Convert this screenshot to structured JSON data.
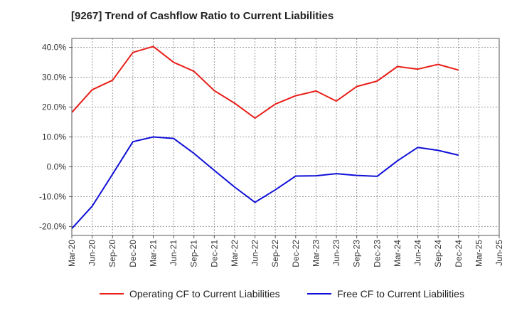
{
  "chart_data": {
    "type": "line",
    "title": "[9267]  Trend of Cashflow Ratio to Current Liabilities",
    "xlabel": "",
    "ylabel": "",
    "x": [
      "Mar-20",
      "Jun-20",
      "Sep-20",
      "Dec-20",
      "Mar-21",
      "Jun-21",
      "Sep-21",
      "Dec-21",
      "Mar-22",
      "Jun-22",
      "Sep-22",
      "Dec-22",
      "Mar-23",
      "Jun-23",
      "Sep-23",
      "Dec-23",
      "Mar-24",
      "Jun-24",
      "Sep-24",
      "Dec-24",
      "Mar-25",
      "Jun-25"
    ],
    "ylim": [
      -23,
      43
    ],
    "yticks": [
      40,
      30,
      20,
      10,
      0,
      -10,
      -20
    ],
    "ytick_labels": [
      "40.0%",
      "30.0%",
      "20.0%",
      "10.0%",
      "0.0%",
      "-10.0%",
      "-20.0%"
    ],
    "grid": true,
    "legend_position": "bottom",
    "series": [
      {
        "name": "Operating CF to Current Liabilities",
        "color": "#e8201a",
        "values": [
          18.2,
          25.8,
          29.0,
          38.3,
          40.3,
          35.0,
          32.0,
          25.5,
          21.3,
          16.3,
          21.0,
          23.8,
          25.4,
          22.0,
          26.9,
          28.7,
          33.6,
          32.7,
          34.3,
          32.4,
          null,
          null
        ]
      },
      {
        "name": "Free CF to Current Liabilities",
        "color": "#1010d8",
        "values": [
          -20.7,
          -13.2,
          -2.5,
          8.4,
          10.0,
          9.5,
          4.5,
          -1.2,
          -6.8,
          -11.9,
          -7.7,
          -3.1,
          -3.0,
          -2.3,
          -2.9,
          -3.2,
          2.0,
          6.5,
          5.5,
          3.9,
          null,
          null
        ]
      }
    ]
  }
}
